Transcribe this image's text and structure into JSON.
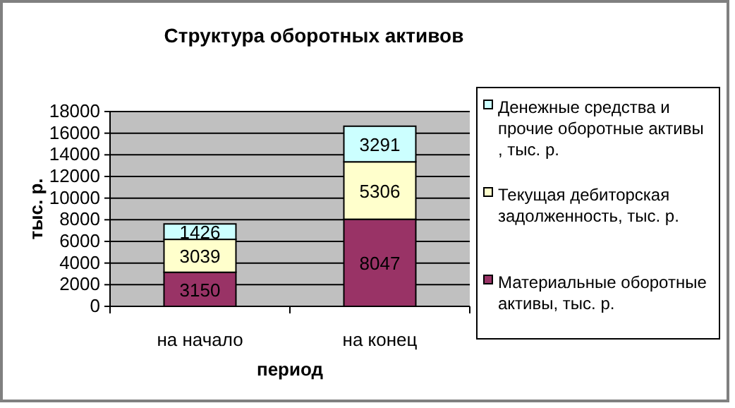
{
  "chart_data": {
    "type": "bar",
    "title": "Структура оборотных активов",
    "xlabel": "период",
    "ylabel": "тыс. р.",
    "categories": [
      "на начало",
      "на конец"
    ],
    "stacked": true,
    "data_labels": true,
    "grid": "y",
    "legend": "right",
    "ylim": [
      0,
      18000
    ],
    "yticks": [
      0,
      2000,
      4000,
      6000,
      8000,
      10000,
      12000,
      14000,
      16000,
      18000
    ],
    "series": [
      {
        "name": "Материальные оборотные активы, тыс. р.",
        "color": "#993366",
        "values": [
          3150,
          8047
        ]
      },
      {
        "name": "Текущая дебиторская задолженность, тыс. р.",
        "color": "#ffffcc",
        "values": [
          3039,
          5306
        ]
      },
      {
        "name": "Денежные средства и прочие оборотные активы , тыс. р.",
        "color": "#ccffff",
        "values": [
          1426,
          3291
        ]
      }
    ]
  }
}
